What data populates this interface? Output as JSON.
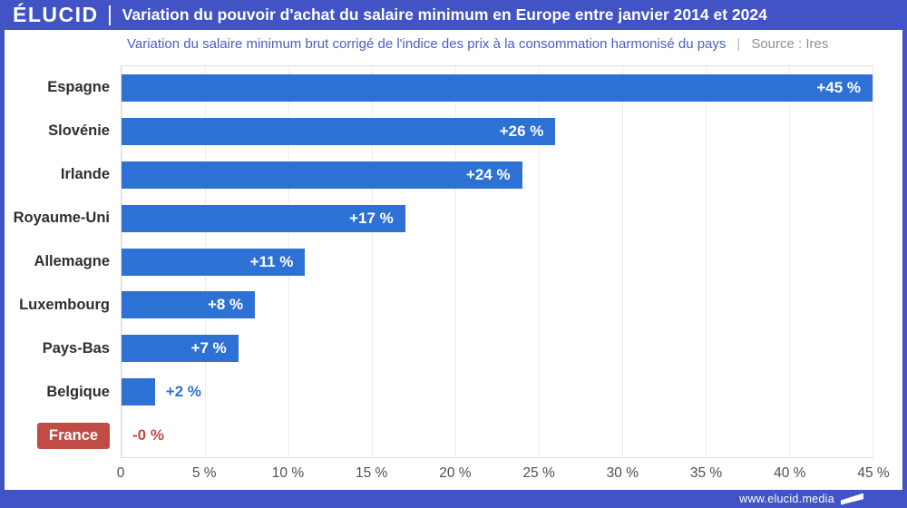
{
  "header": {
    "logo": "ÉLUCID",
    "title": "Variation du pouvoir d'achat du salaire minimum en Europe entre janvier 2014 et 2024"
  },
  "subtitle": {
    "text": "Variation du salaire minimum brut corrigé de l'indice des prix à la consommation harmonisé du pays",
    "separator": "|",
    "source": "Source : Ires"
  },
  "footer": {
    "url": "www.elucid.media"
  },
  "colors": {
    "indigo": "#4253c5",
    "bar_blue": "#2e71d4",
    "accent_red": "#c14b45",
    "sub_blue": "#4a5dc8",
    "tick_gray": "#4f4f54",
    "cat_dark": "#2e2e33"
  },
  "chart_data": {
    "type": "bar",
    "orientation": "horizontal",
    "title": "Variation du pouvoir d'achat du salaire minimum en Europe entre janvier 2014 et 2024",
    "xlabel": "",
    "ylabel": "",
    "xlim": [
      0,
      45
    ],
    "grid": true,
    "categories": [
      "Espagne",
      "Slovénie",
      "Irlande",
      "Royaume-Uni",
      "Allemagne",
      "Luxembourg",
      "Pays-Bas",
      "Belgique",
      "France"
    ],
    "values": [
      45,
      26,
      24,
      17,
      11,
      8,
      7,
      2,
      0
    ],
    "points": [
      {
        "label": "Espagne",
        "value": 45,
        "value_label": "+45 %",
        "label_pos": "inside",
        "highlight": false
      },
      {
        "label": "Slovénie",
        "value": 26,
        "value_label": "+26 %",
        "label_pos": "inside",
        "highlight": false
      },
      {
        "label": "Irlande",
        "value": 24,
        "value_label": "+24 %",
        "label_pos": "inside",
        "highlight": false
      },
      {
        "label": "Royaume-Uni",
        "value": 17,
        "value_label": "+17 %",
        "label_pos": "inside",
        "highlight": false
      },
      {
        "label": "Allemagne",
        "value": 11,
        "value_label": "+11 %",
        "label_pos": "inside",
        "highlight": false
      },
      {
        "label": "Luxembourg",
        "value": 8,
        "value_label": "+8 %",
        "label_pos": "inside",
        "highlight": false
      },
      {
        "label": "Pays-Bas",
        "value": 7,
        "value_label": "+7 %",
        "label_pos": "inside",
        "highlight": false
      },
      {
        "label": "Belgique",
        "value": 2,
        "value_label": "+2 %",
        "label_pos": "outside",
        "highlight": false
      },
      {
        "label": "France",
        "value": 0,
        "value_label": "-0 %",
        "label_pos": "outside",
        "highlight": true
      }
    ],
    "x_ticks": [
      "0",
      "5 %",
      "10 %",
      "15 %",
      "20 %",
      "25 %",
      "30 %",
      "35 %",
      "40 %",
      "45 %"
    ],
    "x_tick_step": 5
  }
}
